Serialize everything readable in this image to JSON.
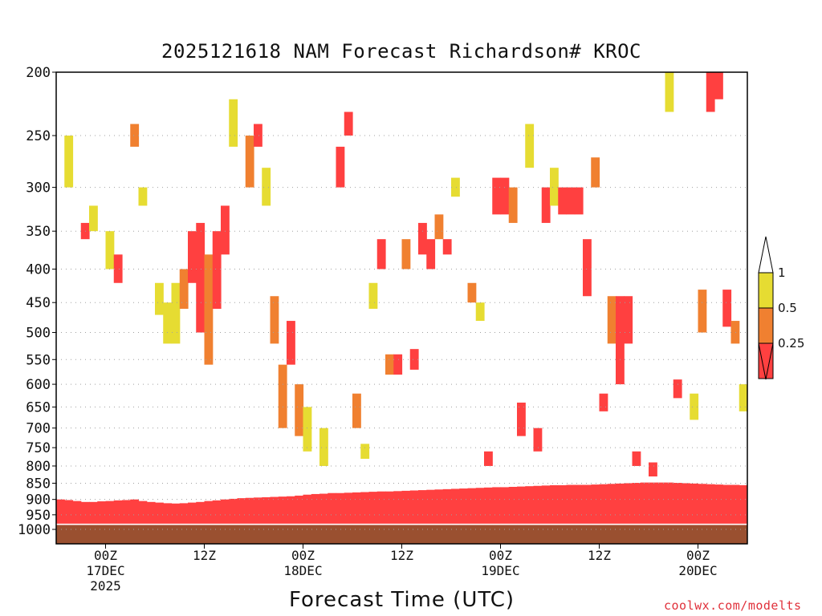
{
  "title": "2025121618 NAM Forecast Richardson# KROC",
  "xaxis_title": "Forecast Time (UTC)",
  "credit": "coolwx.com/modelts",
  "colors": {
    "ri_lt_025": "#ff4040",
    "ri_025_05": "#f08030",
    "ri_05_1": "#e6dc32",
    "ground": "#9a5030",
    "gridline": "#a0a0a0"
  },
  "chart_data": {
    "type": "heatmap",
    "title": "2025121618 NAM Forecast Richardson# KROC",
    "xlabel": "Forecast Time (UTC)",
    "ylabel": "",
    "y_scale": "log pressure (hPa), inverted",
    "ylim": [
      1000,
      200
    ],
    "xlim_hours": [
      0,
      84
    ],
    "grid": "horizontal dotted at labeled levels",
    "y_ticks": [
      200,
      250,
      300,
      350,
      400,
      450,
      500,
      550,
      600,
      650,
      700,
      750,
      800,
      850,
      900,
      950,
      1000
    ],
    "x_ticks": [
      {
        "hour": 6,
        "lines": [
          "00Z",
          "17DEC",
          "2025"
        ]
      },
      {
        "hour": 18,
        "lines": [
          "12Z"
        ]
      },
      {
        "hour": 30,
        "lines": [
          "00Z",
          "18DEC"
        ]
      },
      {
        "hour": 42,
        "lines": [
          "12Z"
        ]
      },
      {
        "hour": 54,
        "lines": [
          "00Z",
          "19DEC"
        ]
      },
      {
        "hour": 66,
        "lines": [
          "12Z"
        ]
      },
      {
        "hour": 78,
        "lines": [
          "00Z",
          "20DEC"
        ]
      }
    ],
    "colorbar": {
      "labels": [
        "1",
        "0.5",
        "0.25"
      ],
      "bins": [
        {
          "range": "0.5–1",
          "color": "#e6dc32"
        },
        {
          "range": "0.25–0.5",
          "color": "#f08030"
        },
        {
          "range": "<0.25",
          "color": "#ff4040"
        }
      ],
      "placement": "right"
    },
    "ground_hpa": 985,
    "surface_layer_top_hpa": [
      900,
      902,
      905,
      908,
      908,
      906,
      905,
      903,
      902,
      900,
      905,
      908,
      910,
      912,
      913,
      912,
      910,
      908,
      905,
      903,
      900,
      898,
      896,
      895,
      894,
      893,
      892,
      891,
      890,
      888,
      885,
      883,
      882,
      880,
      880,
      879,
      878,
      877,
      876,
      875,
      875,
      874,
      873,
      872,
      871,
      870,
      869,
      868,
      867,
      866,
      865,
      864,
      863,
      862,
      862,
      861,
      860,
      859,
      858,
      857,
      856,
      856,
      855,
      855,
      855,
      854,
      853,
      852,
      851,
      850,
      849,
      848,
      848,
      848,
      848,
      849,
      850,
      851,
      852,
      853,
      854,
      855,
      855,
      856,
      856,
      857,
      858
    ],
    "cells": [
      {
        "t": 1,
        "p0": 250,
        "p1": 300,
        "cat": "ri_05_1"
      },
      {
        "t": 3,
        "p0": 340,
        "p1": 360,
        "cat": "ri_lt_025"
      },
      {
        "t": 4,
        "p0": 320,
        "p1": 350,
        "cat": "ri_05_1"
      },
      {
        "t": 6,
        "p0": 350,
        "p1": 400,
        "cat": "ri_05_1"
      },
      {
        "t": 7,
        "p0": 380,
        "p1": 420,
        "cat": "ri_lt_025"
      },
      {
        "t": 9,
        "p0": 240,
        "p1": 260,
        "cat": "ri_025_05"
      },
      {
        "t": 10,
        "p0": 300,
        "p1": 320,
        "cat": "ri_05_1"
      },
      {
        "t": 12,
        "p0": 420,
        "p1": 470,
        "cat": "ri_05_1"
      },
      {
        "t": 13,
        "p0": 450,
        "p1": 520,
        "cat": "ri_05_1"
      },
      {
        "t": 14,
        "p0": 420,
        "p1": 520,
        "cat": "ri_05_1"
      },
      {
        "t": 15,
        "p0": 400,
        "p1": 460,
        "cat": "ri_025_05"
      },
      {
        "t": 16,
        "p0": 350,
        "p1": 420,
        "cat": "ri_lt_025"
      },
      {
        "t": 17,
        "p0": 340,
        "p1": 500,
        "cat": "ri_lt_025"
      },
      {
        "t": 18,
        "p0": 380,
        "p1": 560,
        "cat": "ri_025_05"
      },
      {
        "t": 19,
        "p0": 350,
        "p1": 460,
        "cat": "ri_lt_025"
      },
      {
        "t": 20,
        "p0": 320,
        "p1": 380,
        "cat": "ri_lt_025"
      },
      {
        "t": 21,
        "p0": 220,
        "p1": 260,
        "cat": "ri_05_1"
      },
      {
        "t": 23,
        "p0": 250,
        "p1": 300,
        "cat": "ri_025_05"
      },
      {
        "t": 24,
        "p0": 240,
        "p1": 260,
        "cat": "ri_lt_025"
      },
      {
        "t": 25,
        "p0": 280,
        "p1": 320,
        "cat": "ri_05_1"
      },
      {
        "t": 26,
        "p0": 440,
        "p1": 520,
        "cat": "ri_025_05"
      },
      {
        "t": 27,
        "p0": 560,
        "p1": 700,
        "cat": "ri_025_05"
      },
      {
        "t": 28,
        "p0": 480,
        "p1": 560,
        "cat": "ri_lt_025"
      },
      {
        "t": 29,
        "p0": 600,
        "p1": 720,
        "cat": "ri_025_05"
      },
      {
        "t": 30,
        "p0": 650,
        "p1": 760,
        "cat": "ri_05_1"
      },
      {
        "t": 32,
        "p0": 700,
        "p1": 800,
        "cat": "ri_05_1"
      },
      {
        "t": 34,
        "p0": 260,
        "p1": 300,
        "cat": "ri_lt_025"
      },
      {
        "t": 35,
        "p0": 230,
        "p1": 250,
        "cat": "ri_lt_025"
      },
      {
        "t": 36,
        "p0": 620,
        "p1": 700,
        "cat": "ri_025_05"
      },
      {
        "t": 37,
        "p0": 740,
        "p1": 780,
        "cat": "ri_05_1"
      },
      {
        "t": 38,
        "p0": 420,
        "p1": 460,
        "cat": "ri_05_1"
      },
      {
        "t": 39,
        "p0": 360,
        "p1": 400,
        "cat": "ri_lt_025"
      },
      {
        "t": 40,
        "p0": 540,
        "p1": 580,
        "cat": "ri_025_05"
      },
      {
        "t": 41,
        "p0": 540,
        "p1": 580,
        "cat": "ri_lt_025"
      },
      {
        "t": 42,
        "p0": 360,
        "p1": 400,
        "cat": "ri_025_05"
      },
      {
        "t": 43,
        "p0": 530,
        "p1": 570,
        "cat": "ri_lt_025"
      },
      {
        "t": 44,
        "p0": 340,
        "p1": 380,
        "cat": "ri_lt_025"
      },
      {
        "t": 45,
        "p0": 360,
        "p1": 400,
        "cat": "ri_lt_025"
      },
      {
        "t": 46,
        "p0": 330,
        "p1": 360,
        "cat": "ri_025_05"
      },
      {
        "t": 47,
        "p0": 360,
        "p1": 380,
        "cat": "ri_lt_025"
      },
      {
        "t": 48,
        "p0": 290,
        "p1": 310,
        "cat": "ri_05_1"
      },
      {
        "t": 50,
        "p0": 420,
        "p1": 450,
        "cat": "ri_025_05"
      },
      {
        "t": 51,
        "p0": 450,
        "p1": 480,
        "cat": "ri_05_1"
      },
      {
        "t": 52,
        "p0": 760,
        "p1": 800,
        "cat": "ri_lt_025"
      },
      {
        "t": 53,
        "p0": 290,
        "p1": 330,
        "cat": "ri_lt_025"
      },
      {
        "t": 54,
        "p0": 290,
        "p1": 330,
        "cat": "ri_lt_025"
      },
      {
        "t": 55,
        "p0": 300,
        "p1": 340,
        "cat": "ri_025_05"
      },
      {
        "t": 56,
        "p0": 640,
        "p1": 720,
        "cat": "ri_lt_025"
      },
      {
        "t": 57,
        "p0": 240,
        "p1": 280,
        "cat": "ri_05_1"
      },
      {
        "t": 58,
        "p0": 700,
        "p1": 760,
        "cat": "ri_lt_025"
      },
      {
        "t": 59,
        "p0": 300,
        "p1": 340,
        "cat": "ri_lt_025"
      },
      {
        "t": 60,
        "p0": 280,
        "p1": 320,
        "cat": "ri_05_1"
      },
      {
        "t": 61,
        "p0": 300,
        "p1": 330,
        "cat": "ri_lt_025"
      },
      {
        "t": 62,
        "p0": 300,
        "p1": 330,
        "cat": "ri_lt_025"
      },
      {
        "t": 63,
        "p0": 300,
        "p1": 330,
        "cat": "ri_lt_025"
      },
      {
        "t": 64,
        "p0": 360,
        "p1": 440,
        "cat": "ri_lt_025"
      },
      {
        "t": 65,
        "p0": 270,
        "p1": 300,
        "cat": "ri_025_05"
      },
      {
        "t": 66,
        "p0": 620,
        "p1": 660,
        "cat": "ri_lt_025"
      },
      {
        "t": 67,
        "p0": 440,
        "p1": 520,
        "cat": "ri_025_05"
      },
      {
        "t": 68,
        "p0": 440,
        "p1": 600,
        "cat": "ri_lt_025"
      },
      {
        "t": 69,
        "p0": 440,
        "p1": 520,
        "cat": "ri_lt_025"
      },
      {
        "t": 70,
        "p0": 760,
        "p1": 800,
        "cat": "ri_lt_025"
      },
      {
        "t": 72,
        "p0": 790,
        "p1": 830,
        "cat": "ri_lt_025"
      },
      {
        "t": 74,
        "p0": 200,
        "p1": 230,
        "cat": "ri_05_1"
      },
      {
        "t": 75,
        "p0": 590,
        "p1": 630,
        "cat": "ri_lt_025"
      },
      {
        "t": 77,
        "p0": 620,
        "p1": 680,
        "cat": "ri_05_1"
      },
      {
        "t": 78,
        "p0": 430,
        "p1": 500,
        "cat": "ri_025_05"
      },
      {
        "t": 79,
        "p0": 200,
        "p1": 230,
        "cat": "ri_lt_025"
      },
      {
        "t": 80,
        "p0": 200,
        "p1": 220,
        "cat": "ri_lt_025"
      },
      {
        "t": 81,
        "p0": 430,
        "p1": 490,
        "cat": "ri_lt_025"
      },
      {
        "t": 82,
        "p0": 480,
        "p1": 520,
        "cat": "ri_025_05"
      },
      {
        "t": 83,
        "p0": 600,
        "p1": 660,
        "cat": "ri_05_1"
      }
    ]
  }
}
